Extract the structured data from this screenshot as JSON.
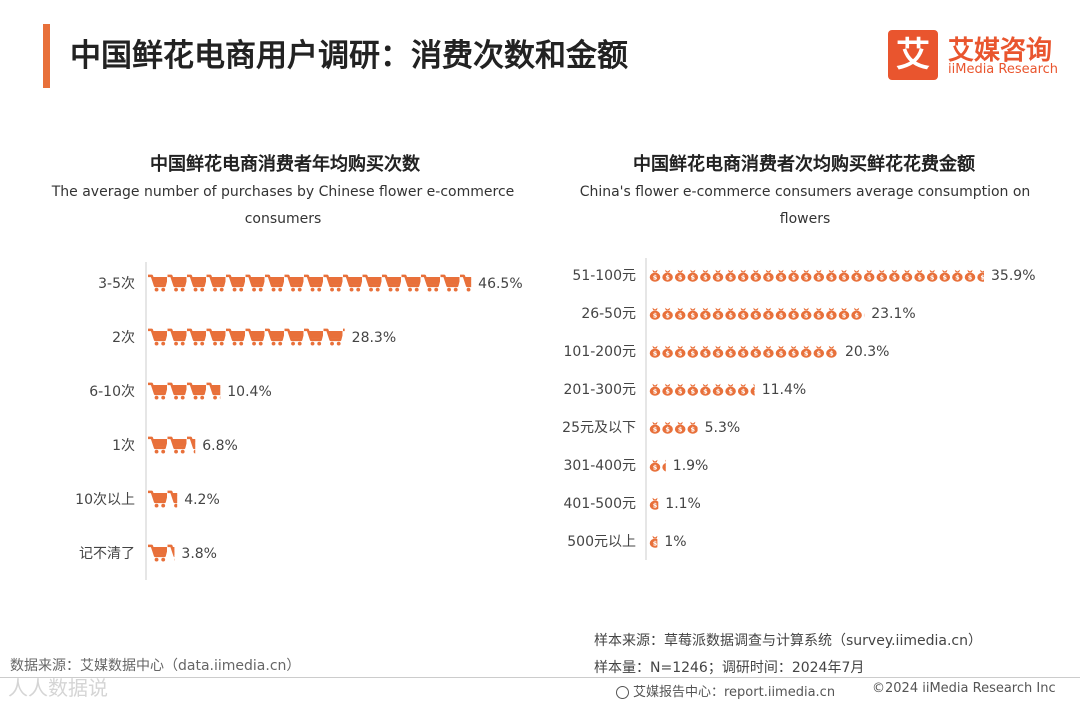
{
  "header": {
    "title": "中国鲜花电商用户调研：消费次数和金额",
    "logo_mark": "艾",
    "logo_cn": "艾媒咨询",
    "logo_en": "iiMedia Research"
  },
  "colors": {
    "accent": "#e8703a",
    "icon": "#e8703a",
    "axis": "#cccccc"
  },
  "chart_data": [
    {
      "type": "bar",
      "icon": "cart-icon",
      "title": "中国鲜花电商消费者年均购买次数",
      "subtitle": "The average number of purchases by Chinese flower e-commerce consumers",
      "categories": [
        "3-5次",
        "2次",
        "6-10次",
        "1次",
        "10次以上",
        "记不清了"
      ],
      "values": [
        46.5,
        28.3,
        10.4,
        6.8,
        4.2,
        3.8
      ],
      "unit": "%"
    },
    {
      "type": "bar",
      "icon": "money-bag-icon",
      "title": "中国鲜花电商消费者次均购买鲜花花费金额",
      "subtitle": "China's flower e-commerce consumers average consumption on flowers",
      "categories": [
        "51-100元",
        "26-50元",
        "101-200元",
        "201-300元",
        "25元及以下",
        "301-400元",
        "401-500元",
        "500元以上"
      ],
      "values": [
        35.9,
        23.1,
        20.3,
        11.4,
        5.3,
        1.9,
        1.1,
        1.0
      ],
      "unit": "%"
    }
  ],
  "footer": {
    "source_left": "数据来源：艾媒数据中心（data.iimedia.cn）",
    "sample_source": "样本来源：草莓派数据调查与计算系统（survey.iimedia.cn）",
    "sample_size": "样本量：N=1246；调研时间：2024年7月",
    "report_center": "艾媒报告中心：report.iimedia.cn",
    "copyright": "©2024  iiMedia Research Inc",
    "watermark": "人人数据说"
  }
}
